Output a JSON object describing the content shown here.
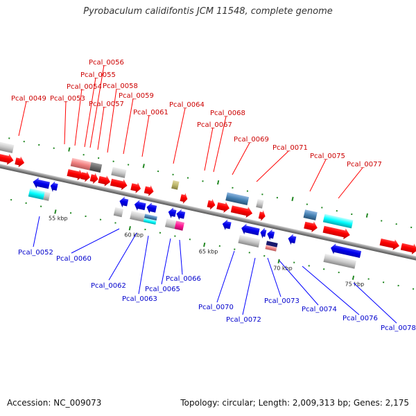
{
  "title": "Pyrobaculum calidifontis JCM 11548, complete genome",
  "footer": {
    "accession": "Accession: NC_009073",
    "topology": "Topology: circular; Length: 2,009,313 bp; Genes: 2,175"
  },
  "scale_labels": [
    "55 kbp",
    "60 kbp",
    "65 kbp",
    "70 kbp",
    "75 kbp"
  ],
  "top_gene_labels": [
    "Pcal_0049",
    "Pcal_0053",
    "Pcal_0054",
    "Pcal_0055",
    "Pcal_0056",
    "Pcal_0057",
    "Pcal_0058",
    "Pcal_0059",
    "Pcal_0061",
    "Pcal_0064",
    "Pcal_0067",
    "Pcal_0068",
    "Pcal_0069",
    "Pcal_0071",
    "Pcal_0075",
    "Pcal_0077"
  ],
  "bottom_gene_labels": [
    "Pcal_0052",
    "Pcal_0060",
    "Pcal_0062",
    "Pcal_0063",
    "Pcal_0065",
    "Pcal_0066",
    "Pcal_0070",
    "Pcal_0072",
    "Pcal_0073",
    "Pcal_0074",
    "Pcal_0076",
    "Pcal_0078"
  ],
  "colors": {
    "forward_strand": "#ff0000",
    "reverse_strand": "#0000ee",
    "backbone": "#888888",
    "tick": "#228822",
    "label_top": "#cc0000",
    "label_bottom": "#0000cc"
  }
}
